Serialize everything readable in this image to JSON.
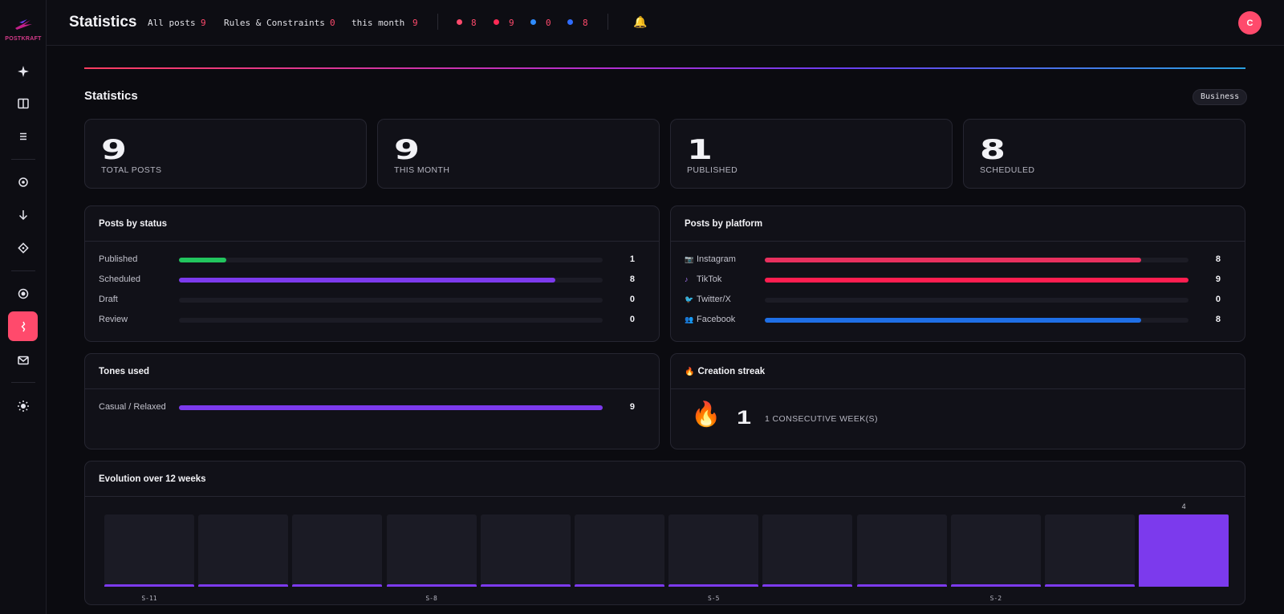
{
  "app": {
    "name": "POSTKRAFT"
  },
  "header": {
    "title": "Statistics",
    "stats": [
      {
        "label": "All posts",
        "value": "9"
      },
      {
        "label": "Rules & Constraints",
        "value": "0"
      },
      {
        "label": "this month",
        "value": "9"
      }
    ],
    "platform_counts": [
      {
        "color": "#ff4a6c",
        "value": "8"
      },
      {
        "color": "#ff2a55",
        "value": "9"
      },
      {
        "color": "#2f8cff",
        "value": "0"
      },
      {
        "color": "#2f6cff",
        "value": "8"
      }
    ],
    "avatar_initial": "C"
  },
  "page": {
    "title": "Statistics",
    "plan_badge": "Business"
  },
  "summary": [
    {
      "value": "9",
      "label": "TOTAL POSTS"
    },
    {
      "value": "9",
      "label": "THIS MONTH"
    },
    {
      "value": "1",
      "label": "PUBLISHED"
    },
    {
      "value": "8",
      "label": "SCHEDULED"
    }
  ],
  "posts_by_status": {
    "title": "Posts by status",
    "max": 9,
    "rows": [
      {
        "label": "Published",
        "value": 1,
        "display": "1",
        "color": "#22c55e"
      },
      {
        "label": "Scheduled",
        "value": 8,
        "display": "8",
        "color": "#7c3aed"
      },
      {
        "label": "Draft",
        "value": 0,
        "display": "0",
        "color": "#7c3aed"
      },
      {
        "label": "Review",
        "value": 0,
        "display": "0",
        "color": "#7c3aed"
      }
    ]
  },
  "posts_by_platform": {
    "title": "Posts by platform",
    "max": 9,
    "rows": [
      {
        "icon": "instagram-icon",
        "label": "Instagram",
        "value": 8,
        "display": "8",
        "color": "#e8305e"
      },
      {
        "icon": "tiktok-icon",
        "label": "TikTok",
        "value": 9,
        "display": "9",
        "color": "#ff1e50"
      },
      {
        "icon": "twitter-icon",
        "label": "Twitter/X",
        "value": 0,
        "display": "0",
        "color": "#2f8cff"
      },
      {
        "icon": "facebook-icon",
        "label": "Facebook",
        "value": 8,
        "display": "8",
        "color": "#1f6fe6"
      }
    ]
  },
  "tones_used": {
    "title": "Tones used",
    "max": 9,
    "rows": [
      {
        "label": "Casual / Relaxed",
        "value": 9,
        "display": "9",
        "color": "#7c3aed"
      }
    ]
  },
  "creation_streak": {
    "title": "Creation streak",
    "value": "1",
    "label": "1 CONSECUTIVE WEEK(S)"
  },
  "evolution": {
    "title": "Evolution over 12 weeks",
    "max": 4,
    "weeks": [
      {
        "label": "S-11",
        "value": 0.1
      },
      {
        "label": "",
        "value": 0
      },
      {
        "label": "",
        "value": 0
      },
      {
        "label": "S-8",
        "value": 0.1
      },
      {
        "label": "",
        "value": 0
      },
      {
        "label": "",
        "value": 0
      },
      {
        "label": "S-5",
        "value": 0.1
      },
      {
        "label": "",
        "value": 0
      },
      {
        "label": "",
        "value": 0
      },
      {
        "label": "S-2",
        "value": 0.1
      },
      {
        "label": "",
        "value": 0
      },
      {
        "label": "",
        "value": 4,
        "top_label": "4"
      }
    ]
  }
}
